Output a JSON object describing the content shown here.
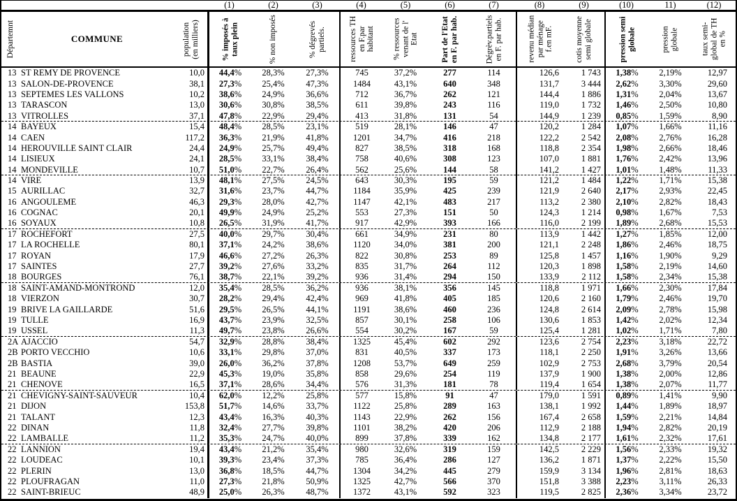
{
  "header": {
    "dept_label": "Départemnt",
    "commune_label": "COMMUNE",
    "population_label": "population\n(en milliers)",
    "columns": [
      {
        "num": "(1)",
        "label": "% imposés à\ntaux plein"
      },
      {
        "num": "(2)",
        "label": "% non imposés"
      },
      {
        "num": "(3)",
        "label": "% dégrevés\npartiels."
      },
      {
        "num": "(4)",
        "label": "ressources TH\nen F.par\nhabitant"
      },
      {
        "num": "(5)",
        "label": "% ressources\nvenant de l'\nEtat"
      },
      {
        "num": "(6)",
        "label": "Part de l'Etat\nen F. par hab."
      },
      {
        "num": "(7)",
        "label": "Dégrèv.partiels\nen F. par hab."
      },
      {
        "num": "(8)",
        "label": "revenu médian\npar ménage\nf.en mF."
      },
      {
        "num": "(9)",
        "label": "cotis moyenne\nsemi globale"
      },
      {
        "num": "(10)",
        "label": "pression semi\nglobale"
      },
      {
        "num": "11)",
        "label": "pression\nglobale"
      },
      {
        "num": "(12)",
        "label": "taux semi-\nglobal de TH\nen %"
      }
    ]
  },
  "separators_after_rows": [
    5,
    10,
    15,
    20,
    25,
    30,
    35
  ],
  "rows": [
    [
      "13",
      "ST REMY DE PROVENCE",
      "10,0",
      "44,4%",
      "28,3%",
      "27,3%",
      "745",
      "37,2%",
      "277",
      "114",
      "126,6",
      "1 743",
      "1,38%",
      "2,19%",
      "12,97"
    ],
    [
      "13",
      "SALON-DE-PROVENCE",
      "38,1",
      "27,3%",
      "25,4%",
      "47,3%",
      "1484",
      "43,1%",
      "640",
      "348",
      "131,7",
      "3 444",
      "2,62%",
      "3,30%",
      "29,60"
    ],
    [
      "13",
      "SEPTEMES LES VALLONS",
      "10,2",
      "38,6%",
      "24,9%",
      "36,6%",
      "712",
      "36,7%",
      "262",
      "121",
      "144,4",
      "1 886",
      "1,31%",
      "2,04%",
      "13,67"
    ],
    [
      "13",
      "TARASCON",
      "13,0",
      "30,6%",
      "30,8%",
      "38,5%",
      "611",
      "39,8%",
      "243",
      "116",
      "119,0",
      "1 732",
      "1,46%",
      "2,50%",
      "10,80"
    ],
    [
      "13",
      "VITROLLES",
      "37,1",
      "47,8%",
      "22,9%",
      "29,4%",
      "413",
      "31,8%",
      "131",
      "54",
      "144,9",
      "1 239",
      "0,85%",
      "1,59%",
      "8,90"
    ],
    [
      "14",
      "BAYEUX",
      "15,4",
      "48,4%",
      "28,5%",
      "23,1%",
      "519",
      "28,1%",
      "146",
      "47",
      "120,2",
      "1 284",
      "1,07%",
      "1,66%",
      "11,16"
    ],
    [
      "14",
      "CAEN",
      "117,2",
      "36,3%",
      "21,9%",
      "41,8%",
      "1201",
      "34,7%",
      "416",
      "218",
      "122,2",
      "2 542",
      "2,08%",
      "2,76%",
      "16,28"
    ],
    [
      "14",
      "HEROUVILLE SAINT CLAIR",
      "24,4",
      "24,9%",
      "25,7%",
      "49,4%",
      "827",
      "38,5%",
      "318",
      "168",
      "118,8",
      "2 354",
      "1,98%",
      "2,66%",
      "18,46"
    ],
    [
      "14",
      "LISIEUX",
      "24,1",
      "28,5%",
      "33,1%",
      "38,4%",
      "758",
      "40,6%",
      "308",
      "123",
      "107,0",
      "1 881",
      "1,76%",
      "2,42%",
      "13,96"
    ],
    [
      "14",
      "MONDEVILLE",
      "10,7",
      "51,0%",
      "22,7%",
      "26,4%",
      "562",
      "25,6%",
      "144",
      "58",
      "141,2",
      "1 427",
      "1,01%",
      "1,48%",
      "11,33"
    ],
    [
      "14",
      "VIRE",
      "13,9",
      "48,1%",
      "27,5%",
      "24,5%",
      "643",
      "30,3%",
      "195",
      "59",
      "121,2",
      "1 484",
      "1,22%",
      "1,71%",
      "15,38"
    ],
    [
      "15",
      "AURILLAC",
      "32,7",
      "31,6%",
      "23,7%",
      "44,7%",
      "1184",
      "35,9%",
      "425",
      "239",
      "121,9",
      "2 640",
      "2,17%",
      "2,93%",
      "22,45"
    ],
    [
      "16",
      "ANGOULEME",
      "46,3",
      "29,3%",
      "28,0%",
      "42,7%",
      "1147",
      "42,1%",
      "483",
      "217",
      "113,2",
      "2 380",
      "2,10%",
      "2,82%",
      "18,43"
    ],
    [
      "16",
      "COGNAC",
      "20,1",
      "49,9%",
      "24,9%",
      "25,2%",
      "553",
      "27,3%",
      "151",
      "50",
      "124,3",
      "1 214",
      "0,98%",
      "1,67%",
      "7,53"
    ],
    [
      "16",
      "SOYAUX",
      "10,8",
      "26,5%",
      "31,9%",
      "41,7%",
      "917",
      "42,9%",
      "393",
      "166",
      "116,0",
      "2 199",
      "1,89%",
      "2,68%",
      "15,53"
    ],
    [
      "17",
      "ROCHEFORT",
      "27,5",
      "40,0%",
      "29,7%",
      "30,4%",
      "661",
      "34,9%",
      "231",
      "80",
      "113,9",
      "1 442",
      "1,27%",
      "1,85%",
      "12,00"
    ],
    [
      "17",
      "LA ROCHELLE",
      "80,1",
      "37,1%",
      "24,2%",
      "38,6%",
      "1120",
      "34,0%",
      "381",
      "200",
      "121,1",
      "2 248",
      "1,86%",
      "2,46%",
      "18,75"
    ],
    [
      "17",
      "ROYAN",
      "17,9",
      "46,6%",
      "27,2%",
      "26,3%",
      "822",
      "30,8%",
      "253",
      "89",
      "125,8",
      "1 457",
      "1,16%",
      "1,90%",
      "9,29"
    ],
    [
      "17",
      "SAINTES",
      "27,7",
      "39,2%",
      "27,6%",
      "33,2%",
      "835",
      "31,7%",
      "264",
      "112",
      "120,3",
      "1 898",
      "1,58%",
      "2,19%",
      "14,60"
    ],
    [
      "18",
      "BOURGES",
      "76,1",
      "38,7%",
      "22,1%",
      "39,2%",
      "936",
      "31,4%",
      "294",
      "150",
      "133,9",
      "2 112",
      "1,58%",
      "2,34%",
      "15,38"
    ],
    [
      "18",
      "SAINT-AMAND-MONTROND",
      "12,0",
      "35,4%",
      "28,5%",
      "36,2%",
      "936",
      "38,1%",
      "356",
      "145",
      "118,8",
      "1 971",
      "1,66%",
      "2,30%",
      "17,84"
    ],
    [
      "18",
      "VIERZON",
      "30,7",
      "28,2%",
      "29,4%",
      "42,4%",
      "969",
      "41,8%",
      "405",
      "185",
      "120,6",
      "2 160",
      "1,79%",
      "2,46%",
      "19,70"
    ],
    [
      "19",
      "BRIVE LA GAILLARDE",
      "51,6",
      "29,5%",
      "26,5%",
      "44,1%",
      "1191",
      "38,6%",
      "460",
      "236",
      "124,8",
      "2 614",
      "2,09%",
      "2,78%",
      "15,98"
    ],
    [
      "19",
      "TULLE",
      "16,9",
      "43,7%",
      "23,9%",
      "32,5%",
      "857",
      "30,1%",
      "258",
      "106",
      "130,6",
      "1 853",
      "1,42%",
      "2,02%",
      "12,34"
    ],
    [
      "19",
      "USSEL",
      "11,3",
      "49,7%",
      "23,8%",
      "26,6%",
      "554",
      "30,2%",
      "167",
      "59",
      "125,4",
      "1 281",
      "1,02%",
      "1,71%",
      "7,80"
    ],
    [
      "2A",
      "AJACCIO",
      "54,7",
      "32,9%",
      "28,8%",
      "38,4%",
      "1325",
      "45,4%",
      "602",
      "292",
      "123,6",
      "2 754",
      "2,23%",
      "3,18%",
      "22,72"
    ],
    [
      "2B",
      "PORTO VECCHIO",
      "10,6",
      "33,1%",
      "29,8%",
      "37,0%",
      "831",
      "40,5%",
      "337",
      "173",
      "118,1",
      "2 250",
      "1,91%",
      "3,26%",
      "13,66"
    ],
    [
      "2B",
      "BASTIA",
      "39,0",
      "26,0%",
      "36,2%",
      "37,8%",
      "1208",
      "53,7%",
      "649",
      "259",
      "102,9",
      "2 753",
      "2,68%",
      "3,79%",
      "20,54"
    ],
    [
      "21",
      "BEAUNE",
      "22,9",
      "45,3%",
      "19,0%",
      "35,8%",
      "858",
      "29,6%",
      "254",
      "119",
      "137,9",
      "1 900",
      "1,38%",
      "2,00%",
      "12,86"
    ],
    [
      "21",
      "CHENOVE",
      "16,5",
      "37,1%",
      "28,6%",
      "34,4%",
      "576",
      "31,3%",
      "181",
      "78",
      "119,4",
      "1 654",
      "1,38%",
      "2,07%",
      "11,77"
    ],
    [
      "21",
      "CHEVIGNY-SAINT-SAUVEUR",
      "10,4",
      "62,0%",
      "12,2%",
      "25,8%",
      "577",
      "15,8%",
      "91",
      "47",
      "179,0",
      "1 591",
      "0,89%",
      "1,41%",
      "9,90"
    ],
    [
      "21",
      "DIJON",
      "153,8",
      "51,7%",
      "14,6%",
      "33,7%",
      "1122",
      "25,8%",
      "289",
      "163",
      "138,1",
      "1 992",
      "1,44%",
      "1,89%",
      "18,97"
    ],
    [
      "21",
      "TALANT",
      "12,3",
      "43,4%",
      "16,3%",
      "40,3%",
      "1143",
      "22,9%",
      "262",
      "156",
      "167,4",
      "2 658",
      "1,59%",
      "2,21%",
      "14,84"
    ],
    [
      "22",
      "DINAN",
      "11,8",
      "32,4%",
      "27,7%",
      "39,8%",
      "1101",
      "38,2%",
      "420",
      "206",
      "112,9",
      "2 188",
      "1,94%",
      "2,82%",
      "20,19"
    ],
    [
      "22",
      "LAMBALLE",
      "11,2",
      "35,3%",
      "24,7%",
      "40,0%",
      "899",
      "37,8%",
      "339",
      "162",
      "134,8",
      "2 177",
      "1,61%",
      "2,32%",
      "17,61"
    ],
    [
      "22",
      "LANNION",
      "19,4",
      "43,4%",
      "21,2%",
      "35,4%",
      "980",
      "32,6%",
      "319",
      "159",
      "142,5",
      "2 229",
      "1,56%",
      "2,33%",
      "19,32"
    ],
    [
      "22",
      "LOUDEAC",
      "10,1",
      "39,3%",
      "23,4%",
      "37,3%",
      "785",
      "36,4%",
      "286",
      "127",
      "136,2",
      "1 871",
      "1,37%",
      "2,22%",
      "15,50"
    ],
    [
      "22",
      "PLERIN",
      "13,0",
      "36,8%",
      "18,5%",
      "44,7%",
      "1304",
      "34,2%",
      "445",
      "279",
      "159,9",
      "3 134",
      "1,96%",
      "2,81%",
      "18,63"
    ],
    [
      "22",
      "PLOUFRAGAN",
      "11,0",
      "27,3%",
      "21,8%",
      "50,9%",
      "1325",
      "42,7%",
      "566",
      "370",
      "151,8",
      "3 388",
      "2,23%",
      "3,11%",
      "26,33"
    ],
    [
      "22",
      "SAINT-BRIEUC",
      "48,9",
      "25,0%",
      "26,3%",
      "48,7%",
      "1372",
      "43,1%",
      "592",
      "323",
      "119,5",
      "2 825",
      "2,36%",
      "3,34%",
      "23,72"
    ]
  ]
}
